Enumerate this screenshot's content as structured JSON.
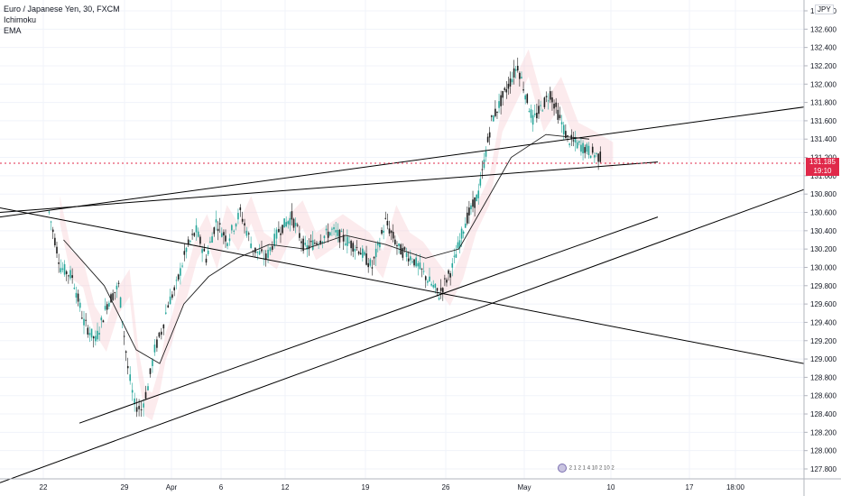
{
  "legend": {
    "symbol": "Euro / Japanese Yen, 30, FXCM",
    "indicator1": "Ichimoku",
    "indicator2": "EMA"
  },
  "currency": "JPY",
  "last_price": {
    "price": "131.185",
    "countdown": "19:10",
    "color": "#e0294a"
  },
  "events": {
    "labels": "2 1 2 1 4 10 2 10 2"
  },
  "colors": {
    "up": "#26a69a",
    "down": "#1e1e1e",
    "grid": "#f0f3fa",
    "cloud": "#f5c6cc",
    "line": "#000000"
  },
  "chart_data": {
    "type": "candlestick",
    "title": "Euro / Japanese Yen, 30, FXCM",
    "yaxis_ticks": [
      "132.800",
      "132.600",
      "132.400",
      "132.200",
      "132.000",
      "131.800",
      "131.600",
      "131.400",
      "131.200",
      "131.000",
      "130.800",
      "130.600",
      "130.400",
      "130.200",
      "130.000",
      "129.800",
      "129.600",
      "129.400",
      "129.200",
      "129.000",
      "128.800",
      "128.600",
      "128.400",
      "128.200",
      "128.000",
      "127.800"
    ],
    "xaxis_ticks": [
      "22",
      "29",
      "Apr",
      "6",
      "12",
      "19",
      "26",
      "May",
      "10",
      "17",
      "18:00"
    ],
    "ylim": [
      127.65,
      132.95
    ],
    "last_price": 131.185,
    "price_path": [
      [
        "22",
        130.6
      ],
      [
        "22",
        130.0
      ],
      [
        "22",
        129.9
      ],
      [
        "22",
        129.4
      ],
      [
        "22",
        129.2
      ],
      [
        "22",
        129.6
      ],
      [
        "22",
        129.8
      ],
      [
        "29",
        128.9
      ],
      [
        "29",
        128.5
      ],
      [
        "29",
        128.45
      ],
      [
        "29",
        128.7
      ],
      [
        "29",
        129.1
      ],
      [
        "29",
        129.3
      ],
      [
        "29",
        129.6
      ],
      [
        "Apr",
        129.8
      ],
      [
        "Apr",
        130.2
      ],
      [
        "Apr",
        130.4
      ],
      [
        "Apr",
        130.1
      ],
      [
        "Apr",
        130.5
      ],
      [
        "6",
        130.3
      ],
      [
        "6",
        130.6
      ],
      [
        "6",
        130.2
      ],
      [
        "6",
        130.1
      ],
      [
        "6",
        130.4
      ],
      [
        "12",
        130.55
      ],
      [
        "12",
        130.2
      ],
      [
        "12",
        130.3
      ],
      [
        "12",
        130.4
      ],
      [
        "12",
        130.3
      ],
      [
        "12",
        130.2
      ],
      [
        "19",
        130.0
      ],
      [
        "19",
        130.5
      ],
      [
        "19",
        130.2
      ],
      [
        "19",
        130.1
      ],
      [
        "19",
        129.9
      ],
      [
        "19",
        129.7
      ],
      [
        "26",
        130.0
      ],
      [
        "26",
        130.5
      ],
      [
        "26",
        130.8
      ],
      [
        "26",
        131.6
      ],
      [
        "26",
        131.9
      ],
      [
        "26",
        132.2
      ],
      [
        "May",
        131.6
      ],
      [
        "May",
        131.9
      ],
      [
        "May",
        131.4
      ],
      [
        "May",
        131.3
      ],
      [
        "May",
        131.185
      ]
    ],
    "ema_path": [
      [
        "22",
        130.3
      ],
      [
        "22",
        129.8
      ],
      [
        "29",
        129.1
      ],
      [
        "29",
        128.95
      ],
      [
        "Apr",
        129.6
      ],
      [
        "Apr",
        129.9
      ],
      [
        "6",
        130.1
      ],
      [
        "6",
        130.25
      ],
      [
        "12",
        130.2
      ],
      [
        "12",
        130.35
      ],
      [
        "19",
        130.25
      ],
      [
        "19",
        130.1
      ],
      [
        "26",
        130.2
      ],
      [
        "26",
        130.7
      ],
      [
        "26",
        131.2
      ],
      [
        "May",
        131.45
      ],
      [
        "May",
        131.4
      ]
    ],
    "trendlines": [
      {
        "from": [
          "22",
          130.55
        ],
        "to": [
          "18:00",
          131.75
        ]
      },
      {
        "from": [
          "22",
          130.6
        ],
        "to": [
          "17",
          131.15
        ]
      },
      {
        "from": [
          "22",
          130.65
        ],
        "to": [
          "18:00",
          128.95
        ]
      },
      {
        "from": [
          "29",
          128.3
        ],
        "to": [
          "17",
          130.55
        ]
      },
      {
        "from": [
          "22",
          127.65
        ],
        "to": [
          "18:00",
          130.85
        ]
      }
    ]
  }
}
